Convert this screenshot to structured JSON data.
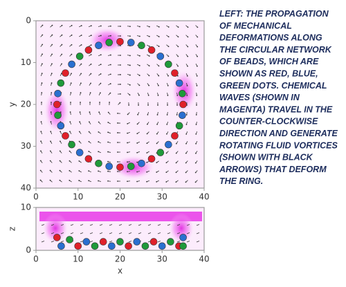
{
  "chart_data": [
    {
      "type": "scatter",
      "ylabel": "y",
      "xlim": [
        0,
        40
      ],
      "xticks": [
        0,
        10,
        20,
        30,
        40
      ],
      "ylim": [
        40,
        0
      ],
      "yticks": [
        0,
        10,
        20,
        30,
        40
      ],
      "series": [
        {
          "color": "#e0202a",
          "x": [
            35,
            33.0,
            27.5,
            20,
            12.5,
            7.0,
            5,
            7.0,
            12.5,
            20,
            27.5,
            33.0
          ],
          "y": [
            20,
            27.5,
            33.0,
            35,
            33.0,
            27.5,
            20,
            12.5,
            7.0,
            5,
            7.0,
            12.5
          ]
        },
        {
          "color": "#2a6fd0",
          "x": [
            34.8,
            31.5,
            25.1,
            17.4,
            10.4,
            5.9,
            5.2,
            8.5,
            14.9,
            22.6,
            29.6,
            34.1
          ],
          "y": [
            22.6,
            29.6,
            34.1,
            34.8,
            31.5,
            25.1,
            17.4,
            10.4,
            5.9,
            5.2,
            8.5,
            14.9
          ]
        },
        {
          "color": "#1f9a3a",
          "x": [
            34.1,
            29.6,
            22.6,
            14.9,
            8.5,
            5.2,
            5.9,
            10.4,
            17.4,
            25.1,
            31.5,
            34.8
          ],
          "y": [
            25.1,
            31.5,
            34.8,
            34.1,
            29.6,
            22.6,
            14.9,
            8.5,
            5.2,
            5.9,
            10.4,
            17.4
          ]
        }
      ]
    },
    {
      "type": "scatter",
      "xlabel": "x",
      "ylabel": "z",
      "xlim": [
        0,
        40
      ],
      "xticks": [
        0,
        10,
        20,
        30,
        40
      ],
      "ylim": [
        0,
        10
      ],
      "yticks": [
        0,
        10
      ],
      "series": [
        {
          "color": "#e0202a",
          "x": [
            5,
            10,
            16,
            22,
            28,
            34
          ],
          "y": [
            3,
            1,
            2,
            1,
            2,
            1
          ]
        },
        {
          "color": "#2a6fd0",
          "x": [
            6,
            12,
            18,
            24,
            30,
            35
          ],
          "y": [
            1,
            2,
            1,
            2,
            1,
            3
          ]
        },
        {
          "color": "#1f9a3a",
          "x": [
            8,
            14,
            20,
            26,
            32,
            35
          ],
          "y": [
            2.5,
            1,
            2,
            1,
            2,
            1
          ]
        }
      ]
    }
  ],
  "caption": [
    "LEFT: THE PROPAGATION",
    "OF MECHANICAL",
    "DEFORMATIONS ALONG",
    "THE CIRCULAR NETWORK",
    "OF BEADS, WHICH ARE",
    "SHOWN AS RED, BLUE,",
    "GREEN DOTS. CHEMICAL",
    "WAVES (SHOWN IN",
    "MAGENTA) TRAVEL IN THE",
    "COUNTER-CLOCKWISE",
    "DIRECTION AND GENERATE",
    "ROTATING FLUID VORTICES",
    "(SHOWN WITH BLACK",
    "ARROWS) THAT DEFORM",
    "THE RING."
  ]
}
